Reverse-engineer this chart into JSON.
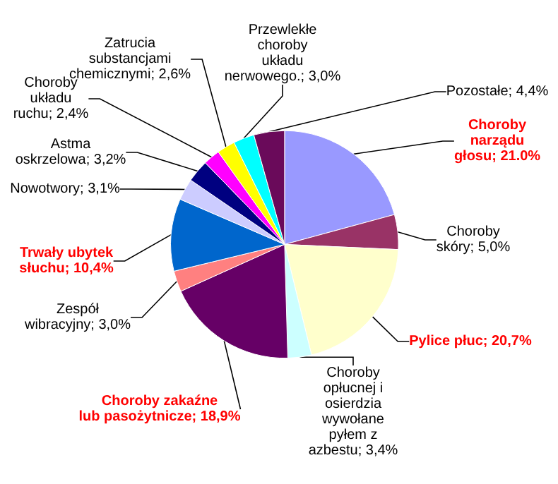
{
  "chart_data": {
    "type": "pie",
    "categories": [
      "Choroby narządu głosu",
      "Choroby skóry",
      "Pylice płuc",
      "Choroby opłucnej i osierdzia wywołane pyłem z azbestu",
      "Choroby zakaźne lub pasożytnicze",
      "Zespół wibracyjny",
      "Trwały ubytek słuchu",
      "Nowotwory",
      "Astma oskrzelowa",
      "Choroby układu ruchu",
      "Zatrucia substancjami chemicznymi",
      "Przewlekłe choroby układu nerwowego.",
      "Pozostałe"
    ],
    "values": [
      21.0,
      5.0,
      20.7,
      3.4,
      18.9,
      3.0,
      10.4,
      3.1,
      3.2,
      2.4,
      2.6,
      3.0,
      4.4
    ],
    "value_labels": [
      "21.0%",
      "5,0%",
      "20,7%",
      "3,4%",
      "18,9%",
      "3,0%",
      "10,4%",
      "3,1%",
      "3,2%",
      "2,4%",
      "2,6%",
      "3,0%",
      "4,4%"
    ],
    "colors": [
      "#9999ff",
      "#993366",
      "#ffffcc",
      "#ccffff",
      "#660066",
      "#ff8080",
      "#0066cc",
      "#ccccff",
      "#000080",
      "#ff00ff",
      "#ffff00",
      "#00ffff",
      "#6a0a5a"
    ],
    "legend": false
  }
}
